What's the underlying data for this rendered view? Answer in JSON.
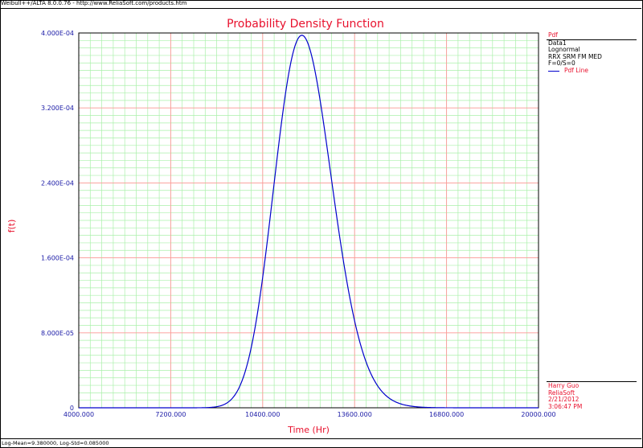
{
  "header": {
    "text": "Weibull++/ALTA 8.0.0.76 - http://www.ReliaSoft.com/products.htm"
  },
  "footer": {
    "text": "Log-Mean=9.380000, Log-Std=0.085000"
  },
  "legend": {
    "title": "Pdf",
    "lines": [
      "Data1",
      "Lognormal",
      "RRX SRM FM MED",
      "F=0/S=0"
    ],
    "series_label": "Pdf Line"
  },
  "signature": {
    "name": "Harry Guo",
    "company": "ReliaSoft",
    "date": "2/21/2012",
    "time": "3:06:47 PM"
  },
  "colors": {
    "title": "#e8112d",
    "tick_text": "#1a1aa6",
    "curve": "#0000cc",
    "major_grid": "#ff9999",
    "minor_grid": "#aaf0aa"
  },
  "chart_data": {
    "type": "line",
    "title": "Probability Density Function",
    "xlabel": "Time (Hr)",
    "ylabel": "f(t)",
    "xlim": [
      4000,
      20000
    ],
    "ylim": [
      0,
      0.0004
    ],
    "x_ticks": [
      4000,
      7200,
      10400,
      13600,
      16800,
      20000
    ],
    "x_tick_labels": [
      "4000.000",
      "7200.000",
      "10400.000",
      "13600.000",
      "16800.000",
      "20000.000"
    ],
    "y_ticks": [
      0,
      8e-05,
      0.00016,
      0.00024,
      0.00032,
      0.0004
    ],
    "y_tick_labels": [
      "0",
      "8.000E-05",
      "1.600E-04",
      "2.400E-04",
      "3.200E-04",
      "4.000E-04"
    ],
    "grid": true,
    "legend_position": "right",
    "series": [
      {
        "name": "Pdf Line",
        "distribution": "lognormal",
        "log_mean": 9.38,
        "log_std": 0.085
      }
    ]
  }
}
